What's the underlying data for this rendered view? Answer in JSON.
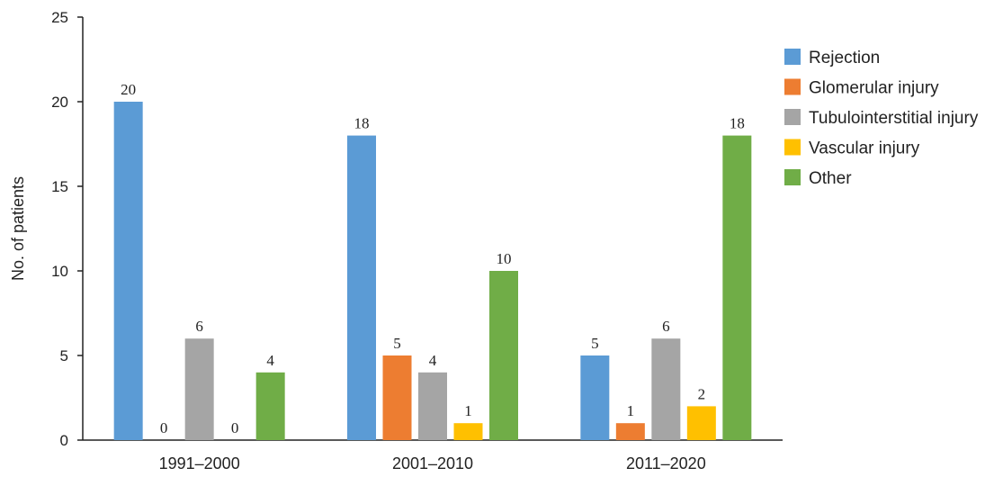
{
  "chart_data": {
    "type": "bar",
    "title": "",
    "xlabel": "",
    "ylabel": "No. of patients",
    "ylim": [
      0,
      25
    ],
    "yticks": [
      0,
      5,
      10,
      15,
      20,
      25
    ],
    "grid": false,
    "legend_position": "right",
    "categories": [
      "1991–2000",
      "2001–2010",
      "2011–2020"
    ],
    "series": [
      {
        "name": "Rejection",
        "color": "#5b9bd5",
        "values": [
          20,
          18,
          5
        ]
      },
      {
        "name": "Glomerular injury",
        "color": "#ed7d31",
        "values": [
          0,
          5,
          1
        ]
      },
      {
        "name": "Tubulointerstitial injury",
        "color": "#a5a5a5",
        "values": [
          6,
          4,
          6
        ]
      },
      {
        "name": "Vascular injury",
        "color": "#ffc000",
        "values": [
          0,
          1,
          2
        ]
      },
      {
        "name": "Other",
        "color": "#70ad47",
        "values": [
          4,
          10,
          18
        ]
      }
    ]
  }
}
